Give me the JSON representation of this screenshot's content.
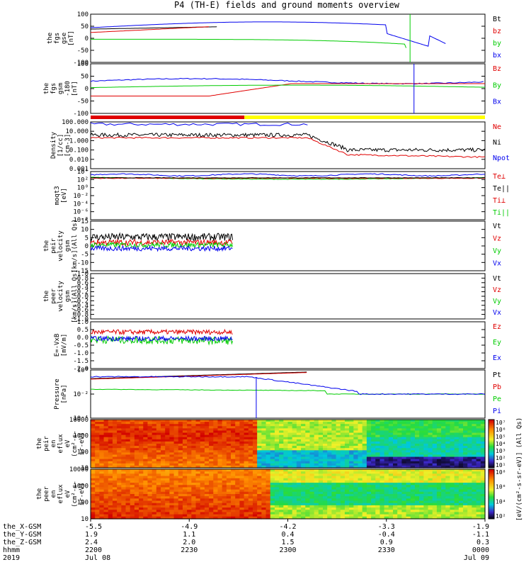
{
  "title": "P4 (TH-E) fields and ground moments overview",
  "colors": {
    "black": "#000000",
    "red": "#e00000",
    "green": "#00cc00",
    "blue": "#0000ee",
    "yellow": "#ffff00"
  },
  "panels": [
    {
      "id": "fgs_gse",
      "ylabel": [
        "the",
        "fgs",
        "gse",
        "[nT]"
      ],
      "ticks": [
        "100",
        "50",
        "0",
        "-50",
        "-100"
      ],
      "legend": [
        {
          "text": "Bt",
          "color": "#000000"
        },
        {
          "text": "bz",
          "color": "#e00000"
        },
        {
          "text": "by",
          "color": "#00cc00"
        },
        {
          "text": "bx",
          "color": "#0000ee"
        }
      ]
    },
    {
      "id": "fgs_gsm",
      "ylabel": [
        "the",
        "fgs",
        "gsm",
        "-180",
        "[nT]"
      ],
      "ticks": [
        "100",
        "50",
        "0",
        "-50",
        "-100"
      ],
      "legend": [
        {
          "text": "Bz",
          "color": "#e00000"
        },
        {
          "text": "By",
          "color": "#00cc00"
        },
        {
          "text": "Bx",
          "color": "#0000ee"
        }
      ]
    },
    {
      "id": "density",
      "ylabel": [
        "Density",
        "[1/cc]",
        "[cm-3]"
      ],
      "ticks": [
        "100.000",
        "10.000",
        "1.000",
        "0.100",
        "0.010",
        "0.001"
      ],
      "legend": [
        {
          "text": "Ne",
          "color": "#e00000"
        },
        {
          "text": "Ni",
          "color": "#000000"
        },
        {
          "text": "Npot",
          "color": "#0000ee"
        }
      ]
    },
    {
      "id": "temperature",
      "ylabel": [
        "moqt3",
        "[eV]"
      ],
      "ticks": [
        "10⁴",
        "10²",
        "10⁰",
        "10⁻²",
        "10⁻⁴",
        "10⁻⁶",
        "10⁻⁸"
      ],
      "legend": [
        {
          "text": "Te⊥",
          "color": "#e00000"
        },
        {
          "text": "Te||",
          "color": "#000000"
        },
        {
          "text": "Ti⊥",
          "color": "#e00000"
        },
        {
          "text": "Ti||",
          "color": "#00cc00"
        }
      ]
    },
    {
      "id": "peir_vel",
      "ylabel": [
        "the",
        "peir",
        "velocity",
        "gsm",
        "[km/s](All Qs)"
      ],
      "ticks": [
        "15",
        "10",
        "5",
        "0",
        "-5",
        "-10",
        "-15"
      ],
      "legend": [
        {
          "text": "Vt",
          "color": "#000000"
        },
        {
          "text": "Vz",
          "color": "#e00000"
        },
        {
          "text": "Vy",
          "color": "#00cc00"
        },
        {
          "text": "Vx",
          "color": "#0000ee"
        }
      ]
    },
    {
      "id": "peer_vel",
      "ylabel": [
        "the",
        "peer",
        "velocity",
        "gsm",
        "[km/s](All Qs)"
      ],
      "ticks": [
        "1.0",
        "0.8",
        "0.6",
        "0.4",
        "0.2",
        "0.0",
        "-0.2",
        "-0.4",
        "-0.6",
        "-0.8",
        "-1.0"
      ],
      "legend": [
        {
          "text": "Vt",
          "color": "#000000"
        },
        {
          "text": "Vz",
          "color": "#e00000"
        },
        {
          "text": "Vy",
          "color": "#00cc00"
        },
        {
          "text": "Vx",
          "color": "#0000ee"
        }
      ]
    },
    {
      "id": "efield",
      "ylabel": [
        "E=-VxB",
        "[mV/m]"
      ],
      "ticks": [
        "1.0",
        "0.5",
        "0.0",
        "-0.5",
        "-1.0",
        "-1.5",
        "-2.0"
      ],
      "legend": [
        {
          "text": "Ez",
          "color": "#e00000"
        },
        {
          "text": "Ey",
          "color": "#00cc00"
        },
        {
          "text": "Ex",
          "color": "#0000ee"
        }
      ]
    },
    {
      "id": "pressure",
      "ylabel": [
        "Pressure",
        "[nPa]"
      ],
      "ticks": [
        "10⁰",
        "10⁻²",
        "10⁻⁴"
      ],
      "legend": [
        {
          "text": "Pt",
          "color": "#000000"
        },
        {
          "text": "Pb",
          "color": "#e00000"
        },
        {
          "text": "Pe",
          "color": "#00cc00"
        },
        {
          "text": "Pi",
          "color": "#0000ee"
        }
      ]
    },
    {
      "id": "peir_spec",
      "ylabel": [
        "the",
        "peir",
        "en",
        "eflux",
        "eV",
        "(cm²-s-",
        "sr-eV)"
      ],
      "ticks": [
        "10000",
        "1000",
        "100",
        "10"
      ],
      "legend": []
    },
    {
      "id": "peer_spec",
      "ylabel": [
        "the",
        "peer",
        "en",
        "eflux",
        "eV",
        "(cm²-s-",
        "sr-eV)"
      ],
      "ticks": [
        "10000",
        "1000",
        "100",
        "10"
      ],
      "legend": []
    }
  ],
  "colorbar_label": "[eV/(cm²-s-sr-eV)] (All Qs)",
  "colorbar1_ticks": [
    "10⁷",
    "10⁶",
    "10⁵",
    "10⁴",
    "10³",
    "10²",
    "10¹"
  ],
  "colorbar2_ticks": [
    "10⁸",
    "10⁶",
    "10⁴",
    "10²"
  ],
  "xaxis": {
    "row_labels": [
      "the_X-GSM",
      "the_Y-GSM",
      "the_Z-GSM",
      "hhmm",
      "2019"
    ],
    "columns": [
      [
        "-5.5",
        "1.9",
        "2.4",
        "2200",
        "Jul 08"
      ],
      [
        "-4.9",
        "1.1",
        "2.0",
        "2230",
        ""
      ],
      [
        "-4.2",
        "0.4",
        "1.5",
        "2300",
        ""
      ],
      [
        "-3.3",
        "-0.4",
        "0.9",
        "2330",
        ""
      ],
      [
        "-1.9",
        "-1.1",
        "0.3",
        "0000",
        "Jul 09"
      ]
    ]
  },
  "mode_bar": [
    {
      "color": "#e00000",
      "from": 0,
      "to": 0.39
    },
    {
      "color": "#ffff00",
      "from": 0.39,
      "to": 1
    }
  ]
}
